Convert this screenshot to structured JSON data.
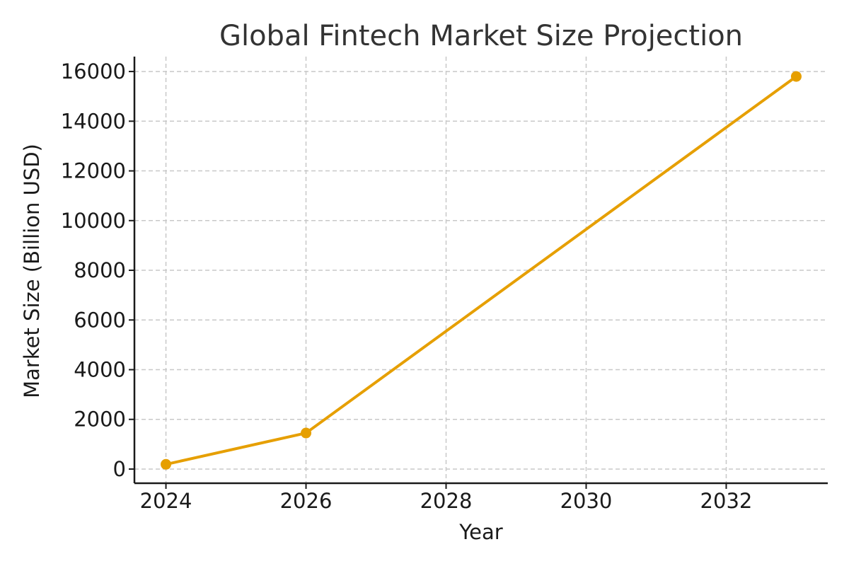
{
  "chart_data": {
    "type": "line",
    "title": "Global Fintech Market Size Projection",
    "xlabel": "Year",
    "ylabel": "Market Size (Billion USD)",
    "x": [
      2024,
      2026,
      2033
    ],
    "series": [
      {
        "name": "Market Size",
        "values": [
          190,
          1450,
          15800
        ],
        "color": "#E69F00"
      }
    ],
    "xlim": [
      2023.55,
      2033.45
    ],
    "ylim": [
      -570,
      16600
    ],
    "xticks": [
      2024,
      2026,
      2028,
      2030,
      2032
    ],
    "yticks": [
      0,
      2000,
      4000,
      6000,
      8000,
      10000,
      12000,
      14000,
      16000
    ],
    "grid": true,
    "legend": "none"
  }
}
